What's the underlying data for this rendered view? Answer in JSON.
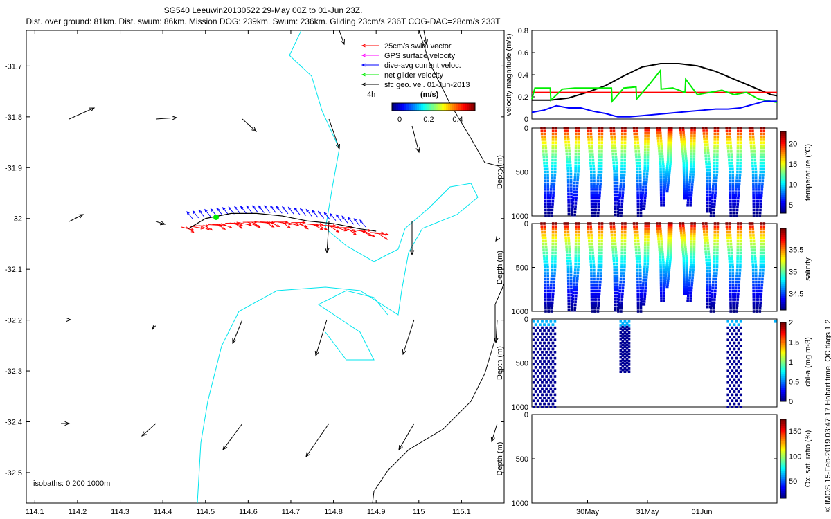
{
  "header": {
    "title_line1": "SG540 Leeuwin20130522 29-May 00Z to 01-Jun 23Z.",
    "title_line2": "Dist. over ground: 81km. Dist. swum: 86km. Mission DOG: 239km. Swum: 236km. Gliding 23cm/s 236T COG-DAC=28cm/s 233T"
  },
  "footer": {
    "copyright": "© IMOS 15-Feb-2019 03:47:17 Hobart time. QC flags 1  2"
  },
  "colors": {
    "swim": "#ff0000",
    "gps": "#ff00ff",
    "dac": "#0000ff",
    "net": "#00ee00",
    "sfc": "#000000",
    "isobath_200": "#00e5ee"
  },
  "chart_data": [
    {
      "type": "scatter",
      "name_key": "map",
      "x_ticks": [
        "114.1",
        "114.2",
        "114.3",
        "114.4",
        "114.5",
        "114.6",
        "114.7",
        "114.8",
        "114.9",
        "115",
        "115.1"
      ],
      "x_tick_values": [
        114.1,
        114.2,
        114.3,
        114.4,
        114.5,
        114.6,
        114.7,
        114.8,
        114.9,
        115.0,
        115.1
      ],
      "y_ticks": [
        "-31.7",
        "-31.8",
        "-31.9",
        "-32",
        "-32.1",
        "-32.2",
        "-32.3",
        "-32.4",
        "-32.5"
      ],
      "y_tick_values": [
        -31.7,
        -31.8,
        -31.9,
        -32.0,
        -32.1,
        -32.2,
        -32.3,
        -32.4,
        -32.5
      ],
      "xlim": [
        114.08,
        115.2
      ],
      "ylim": [
        -32.56,
        -31.63
      ],
      "legend": {
        "items": [
          "25cm/s swim vector",
          "GPS surface velocity",
          "dive-avg current veloc.",
          "net glider velocity",
          "sfc geo. vel. 01-Jun-2013"
        ],
        "time_label": "4h",
        "colorbar_unit": "(m/s)",
        "colorbar_ticks": [
          "0",
          "0.2",
          "0.4"
        ]
      },
      "isobath_label": "isobaths: 0   200  1000m",
      "track": [
        [
          114.46,
          -32.02
        ],
        [
          114.5,
          -32.0
        ],
        [
          114.56,
          -31.99
        ],
        [
          114.62,
          -31.99
        ],
        [
          114.68,
          -31.995
        ],
        [
          114.74,
          -32.005
        ],
        [
          114.8,
          -32.01
        ],
        [
          114.86,
          -32.02
        ],
        [
          114.9,
          -32.025
        ]
      ]
    },
    {
      "type": "line",
      "name_key": "velocity",
      "ylabel": "velocity magnitude (m/s)",
      "y_ticks": [
        "0",
        "0.2",
        "0.4",
        "0.6",
        "0.8"
      ],
      "ylim": [
        0,
        0.8
      ],
      "xlim": [
        0,
        4
      ],
      "series": [
        {
          "color": "#000000",
          "x": [
            0,
            0.3,
            0.6,
            0.9,
            1.2,
            1.5,
            1.8,
            2.1,
            2.4,
            2.7,
            3.0,
            3.3,
            3.6,
            3.9,
            4.0
          ],
          "values": [
            0.17,
            0.17,
            0.19,
            0.24,
            0.3,
            0.39,
            0.47,
            0.5,
            0.5,
            0.48,
            0.43,
            0.36,
            0.29,
            0.22,
            0.21
          ]
        },
        {
          "color": "#ff0000",
          "x": [
            0,
            4
          ],
          "values": [
            0.24,
            0.24
          ]
        },
        {
          "color": "#00ee00",
          "x": [
            0,
            0.05,
            0.1,
            0.2,
            0.3,
            0.31,
            0.5,
            0.7,
            0.9,
            1.1,
            1.3,
            1.31,
            1.5,
            1.7,
            1.71,
            1.9,
            2.1,
            2.11,
            2.3,
            2.5,
            2.51,
            2.7,
            2.9,
            3.1,
            3.3,
            3.5,
            3.7,
            3.9,
            4.0
          ],
          "values": [
            0.18,
            0.28,
            0.28,
            0.28,
            0.28,
            0.17,
            0.27,
            0.28,
            0.28,
            0.28,
            0.28,
            0.16,
            0.28,
            0.29,
            0.18,
            0.3,
            0.44,
            0.27,
            0.28,
            0.24,
            0.36,
            0.22,
            0.24,
            0.26,
            0.22,
            0.24,
            0.18,
            0.16,
            0.15
          ]
        },
        {
          "color": "#0000ff",
          "x": [
            0,
            0.2,
            0.4,
            0.6,
            0.8,
            1.0,
            1.2,
            1.4,
            1.6,
            1.8,
            2.0,
            2.2,
            2.4,
            2.6,
            2.8,
            3.0,
            3.2,
            3.4,
            3.6,
            3.8,
            4.0
          ],
          "values": [
            0.06,
            0.08,
            0.12,
            0.1,
            0.1,
            0.07,
            0.05,
            0.02,
            0.02,
            0.03,
            0.04,
            0.05,
            0.06,
            0.07,
            0.08,
            0.09,
            0.09,
            0.1,
            0.13,
            0.16,
            0.16
          ]
        }
      ]
    },
    {
      "type": "scatter",
      "name_key": "temperature",
      "ylabel": "Depth (m)",
      "y_ticks": [
        "0",
        "500",
        "1000"
      ],
      "colorbar_label": "temperature (°C)",
      "colorbar_ticks": [
        "5",
        "10",
        "15",
        "20"
      ],
      "profiles": 20,
      "max_depths": [
        1000,
        1000,
        980,
        990,
        1000,
        1000,
        990,
        1000,
        1000,
        920,
        880,
        720,
        800,
        880,
        950,
        1000,
        1000,
        1000,
        1000,
        1000
      ]
    },
    {
      "type": "scatter",
      "name_key": "salinity",
      "ylabel": "Depth (m)",
      "y_ticks": [
        "0",
        "500",
        "1000"
      ],
      "colorbar_label": "salinity",
      "colorbar_ticks": [
        "34.5",
        "35",
        "35.5"
      ],
      "profiles": 20,
      "max_depths": [
        1000,
        1000,
        980,
        990,
        1000,
        1000,
        990,
        1000,
        1000,
        920,
        880,
        720,
        800,
        880,
        950,
        1000,
        1000,
        1000,
        1000,
        1000
      ]
    },
    {
      "type": "scatter",
      "name_key": "chla",
      "ylabel": "Depth (m)",
      "y_ticks": [
        "0",
        "500",
        "1000"
      ],
      "colorbar_label": "chl-a (mg m-3)",
      "colorbar_ticks": [
        "0",
        "0.5",
        "1",
        "1.5",
        "2"
      ],
      "profiles_x": [
        0.03,
        0.1,
        0.17,
        0.24,
        0.31,
        1.45,
        1.52,
        3.2,
        3.27,
        3.34
      ],
      "max_depths": [
        1000,
        1000,
        1000,
        1000,
        1000,
        600,
        600,
        1000,
        1000,
        1000
      ]
    },
    {
      "type": "scatter",
      "name_key": "oxygen",
      "ylabel": "Depth (m)",
      "y_ticks": [
        "0",
        "500",
        "1000"
      ],
      "colorbar_label": "Ox. sat. ratio (%)",
      "colorbar_ticks": [
        "50",
        "100",
        "150"
      ],
      "x_ticks": [
        "30May",
        "31May",
        "01Jun"
      ]
    }
  ]
}
